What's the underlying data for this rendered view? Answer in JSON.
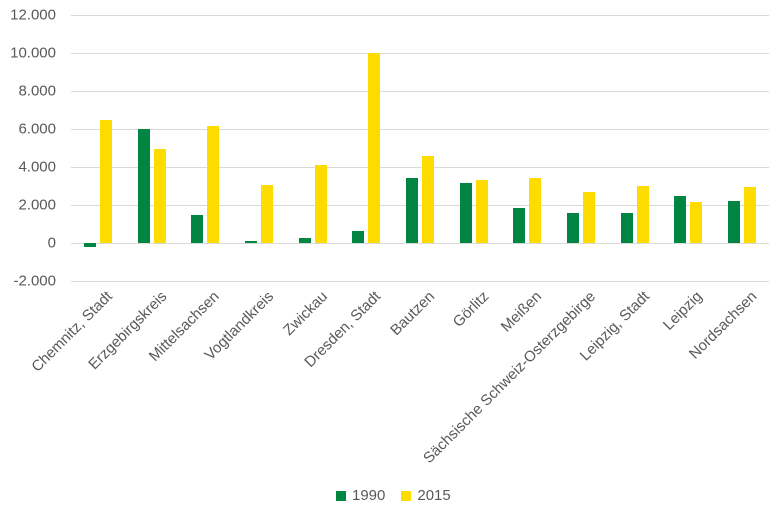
{
  "chart_data": {
    "type": "bar",
    "title": "",
    "xlabel": "",
    "ylabel": "",
    "ylim": [
      -2000,
      12000
    ],
    "yticks": [
      -2000,
      0,
      2000,
      4000,
      6000,
      8000,
      10000,
      12000
    ],
    "ytick_labels": [
      "-2.000",
      "0",
      "2.000",
      "4.000",
      "6.000",
      "8.000",
      "10.000",
      "12.000"
    ],
    "grid": true,
    "legend_position": "bottom",
    "categories": [
      "Chemnitz, Stadt",
      "Erzgebirgskreis",
      "Mittelsachsen",
      "Vogtlandkreis",
      "Zwickau",
      "Dresden, Stadt",
      "Bautzen",
      "Görlitz",
      "Meißen",
      "Sächsische Schweiz-Osterzgebirge",
      "Leipzig, Stadt",
      "Leipzig",
      "Nordsachsen"
    ],
    "series": [
      {
        "name": "1990",
        "color": "#008542",
        "values": [
          -180,
          6000,
          1490,
          140,
          260,
          630,
          3420,
          3160,
          1870,
          1580,
          1580,
          2510,
          2230
        ]
      },
      {
        "name": "2015",
        "color": "#FFDC00",
        "values": [
          6500,
          4960,
          6160,
          3070,
          4140,
          10000,
          4600,
          3350,
          3420,
          2720,
          3030,
          2170,
          2980
        ]
      }
    ]
  },
  "legend": {
    "items": [
      {
        "label": "1990",
        "color": "#008542"
      },
      {
        "label": "2015",
        "color": "#FFDC00"
      }
    ]
  }
}
